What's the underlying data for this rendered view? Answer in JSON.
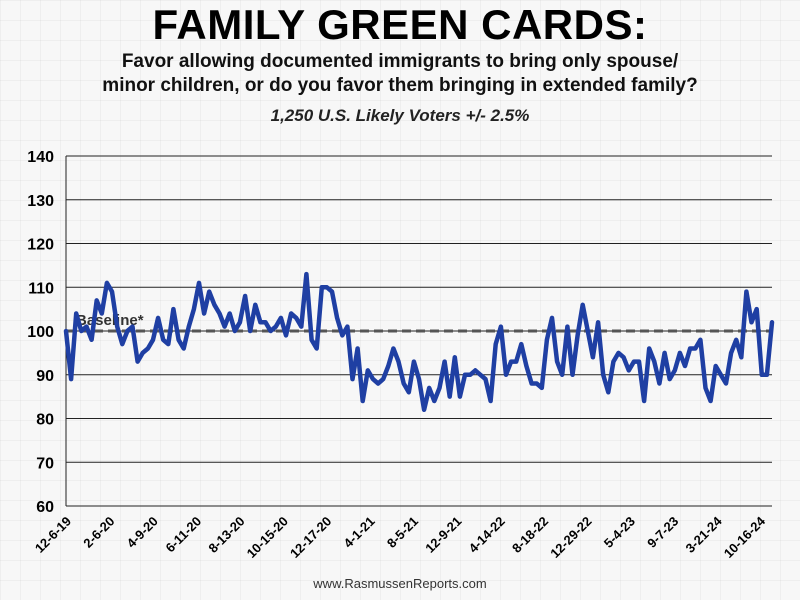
{
  "title": "FAMILY GREEN CARDS:",
  "subtitle_line1": "Favor allowing documented immigrants to bring only spouse/",
  "subtitle_line2": "minor children, or do you favor them bringing in extended family?",
  "sample": "1,250 U.S. Likely Voters +/- 2.5%",
  "footer": "www.RasmussenReports.com",
  "colors": {
    "line": "#1f3fa3",
    "baseline": "#555555",
    "grid": "#222222"
  },
  "chart_data": {
    "type": "line",
    "title": "FAMILY GREEN CARDS:",
    "ylim": [
      60,
      140
    ],
    "yticks": [
      60,
      70,
      80,
      90,
      100,
      110,
      120,
      130,
      140
    ],
    "grid": true,
    "baseline": {
      "value": 100,
      "label": "Baseline*",
      "style": "dashed"
    },
    "x_tick_labels": [
      "12-6-19",
      "2-6-20",
      "4-9-20",
      "6-11-20",
      "8-13-20",
      "10-15-20",
      "12-17-20",
      "4-1-21",
      "8-5-21",
      "12-9-21",
      "4-14-22",
      "8-18-22",
      "12-29-22",
      "5-4-23",
      "9-7-23",
      "3-21-24",
      "10-16-24"
    ],
    "values": [
      100,
      89,
      104,
      100,
      101,
      98,
      107,
      104,
      111,
      109,
      101,
      97,
      100,
      101,
      93,
      95,
      96,
      98,
      103,
      98,
      97,
      105,
      98,
      96,
      101,
      105,
      111,
      104,
      109,
      106,
      104,
      101,
      104,
      100,
      102,
      108,
      100,
      106,
      102,
      102,
      100,
      101,
      103,
      99,
      104,
      103,
      101,
      113,
      98,
      96,
      110,
      110,
      109,
      103,
      99,
      101,
      89,
      96,
      84,
      91,
      89,
      88,
      89,
      92,
      96,
      93,
      88,
      86,
      93,
      89,
      82,
      87,
      84,
      87,
      93,
      85,
      94,
      85,
      90,
      90,
      91,
      90,
      89,
      84,
      97,
      101,
      90,
      93,
      93,
      97,
      92,
      88,
      88,
      87,
      98,
      103,
      93,
      90,
      101,
      90,
      99,
      106,
      100,
      94,
      102,
      90,
      86,
      93,
      95,
      94,
      91,
      93,
      93,
      84,
      96,
      93,
      88,
      95,
      89,
      91,
      95,
      92,
      96,
      96,
      98,
      87,
      84,
      92,
      90,
      88,
      95,
      98,
      94,
      109,
      102,
      105,
      90,
      90,
      102
    ]
  }
}
